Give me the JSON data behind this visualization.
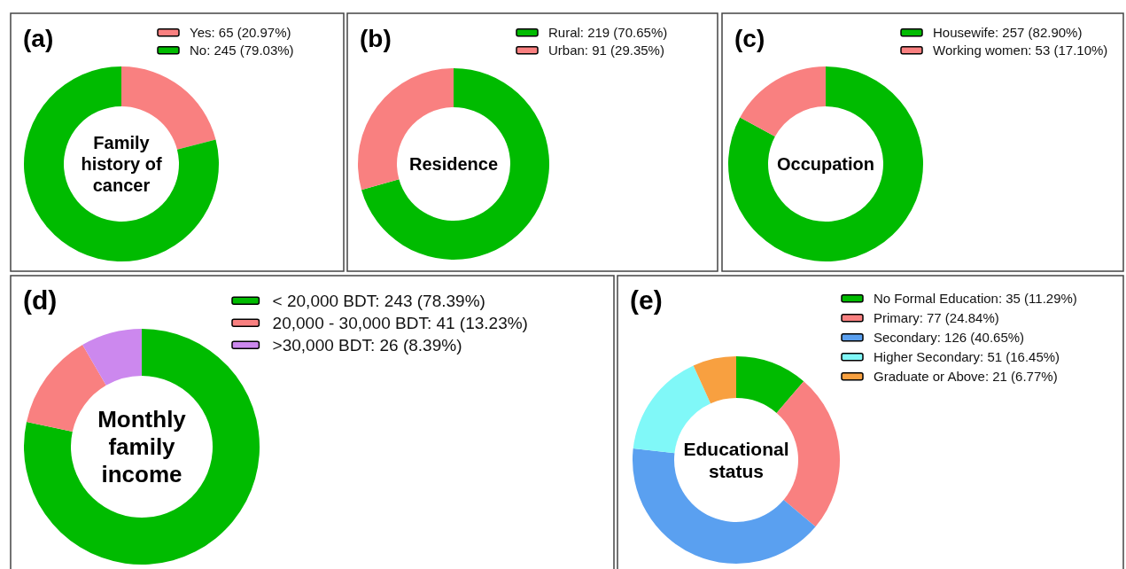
{
  "chart_data": [
    {
      "type": "donut",
      "title": "(a)",
      "annotations": [
        "Family history of cancer"
      ],
      "categories": [
        "Yes: 65 (20.97%)",
        "No: 245 (79.03%)"
      ],
      "values": [
        65,
        245
      ],
      "colors": [
        "#f98080",
        "#00bb00"
      ],
      "legend": "top right"
    },
    {
      "type": "donut",
      "title": "(b)",
      "annotations": [
        "Residence"
      ],
      "categories": [
        "Rural: 219 (70.65%)",
        "Urban: 91 (29.35%)"
      ],
      "values": [
        219,
        91
      ],
      "colors": [
        "#00bb00",
        "#f98080"
      ],
      "legend": "top right"
    },
    {
      "type": "donut",
      "title": "(c)",
      "annotations": [
        "Occupation"
      ],
      "categories": [
        "Housewife: 257 (82.90%)",
        "Working women: 53 (17.10%)"
      ],
      "values": [
        257,
        53
      ],
      "colors": [
        "#00bb00",
        "#f98080"
      ],
      "legend": "top right"
    },
    {
      "type": "donut",
      "title": "(d)",
      "annotations": [
        "Monthly family income"
      ],
      "categories": [
        "< 20,000 BDT: 243 (78.39%)",
        "20,000 - 30,000 BDT: 41 (13.23%)",
        ">30,000 BDT: 26 (8.39%)"
      ],
      "values": [
        243,
        41,
        26
      ],
      "colors": [
        "#00bb00",
        "#f98080",
        "#cc88ee"
      ],
      "legend": "top right"
    },
    {
      "type": "donut",
      "title": "(e)",
      "annotations": [
        "Educational status"
      ],
      "categories": [
        "No Formal Education: 35 (11.29%)",
        "Primary: 77 (24.84%)",
        "Secondary: 126 (40.65%)",
        "Higher Secondary: 51 (16.45%)",
        "Graduate or Above: 21 (6.77%)"
      ],
      "values": [
        35,
        77,
        126,
        51,
        21
      ],
      "colors": [
        "#00bb00",
        "#f98080",
        "#5aa0f0",
        "#80f8f8",
        "#f8a040"
      ],
      "legend": "top right"
    }
  ]
}
